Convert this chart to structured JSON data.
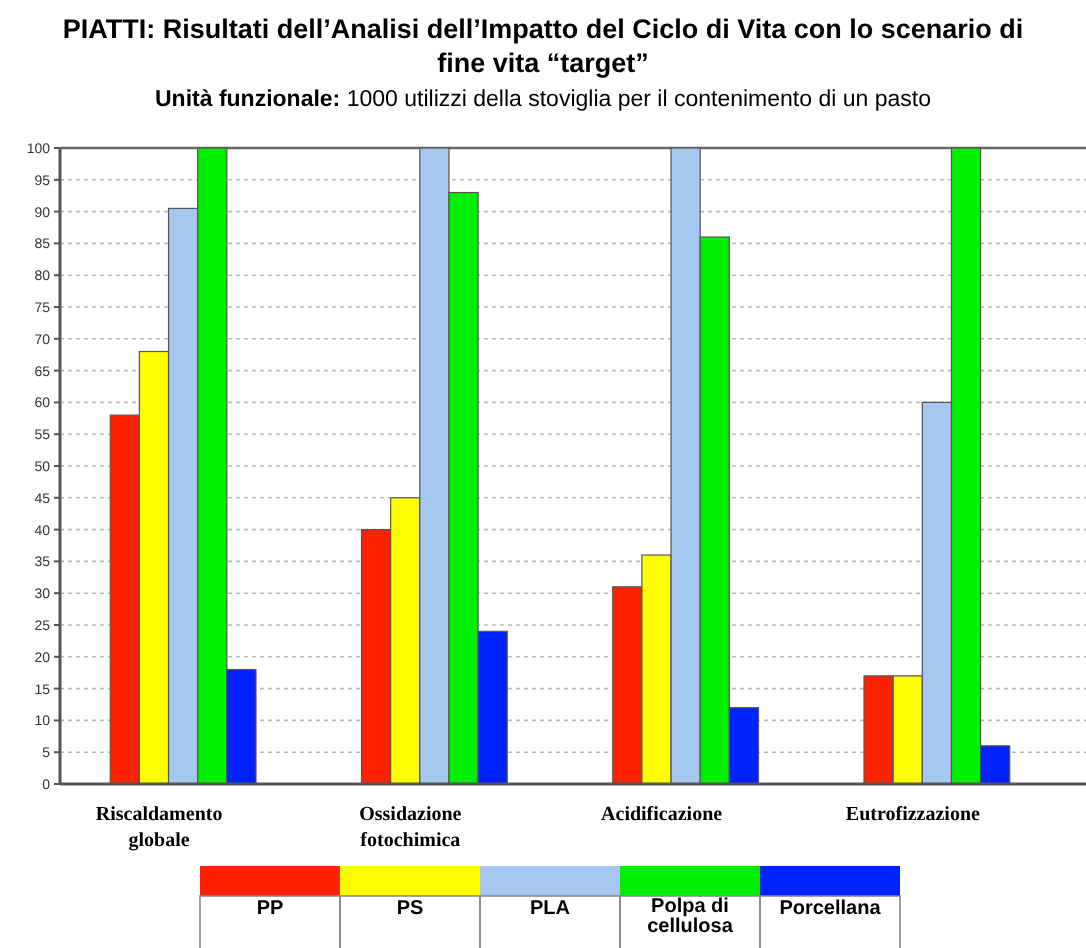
{
  "chart_data": {
    "type": "bar",
    "title": "PIATTI: Risultati dell’Analisi dell’Impatto del Ciclo di Vita con lo scenario di fine vita “target”",
    "subtitle": "Unità funzionale: 1000 utilizzi della stoviglia per il contenimento di un pasto",
    "categories": [
      "Riscaldamento globale",
      "Ossidazione fotochimica",
      "Acidificazione",
      "Eutrofizzazione"
    ],
    "series": [
      {
        "name": "PP",
        "color": "#ff2200",
        "values": [
          58,
          40,
          31,
          17
        ]
      },
      {
        "name": "PS",
        "color": "#ffff00",
        "values": [
          68,
          45,
          36,
          17
        ]
      },
      {
        "name": "PLA",
        "color": "#a6c8f0",
        "values": [
          90.5,
          100,
          100,
          60
        ]
      },
      {
        "name": "Polpa di cellulosa",
        "color": "#00ee00",
        "values": [
          100,
          93,
          86,
          100
        ]
      },
      {
        "name": "Porcellana",
        "color": "#0022ff",
        "values": [
          18,
          24,
          12,
          6
        ]
      }
    ],
    "ylim": [
      0,
      100
    ],
    "yticks": [
      0,
      5,
      10,
      15,
      20,
      25,
      30,
      35,
      40,
      45,
      50,
      55,
      60,
      65,
      70,
      75,
      80,
      85,
      90,
      95,
      100
    ],
    "grid": "y",
    "legend": "bottom"
  }
}
